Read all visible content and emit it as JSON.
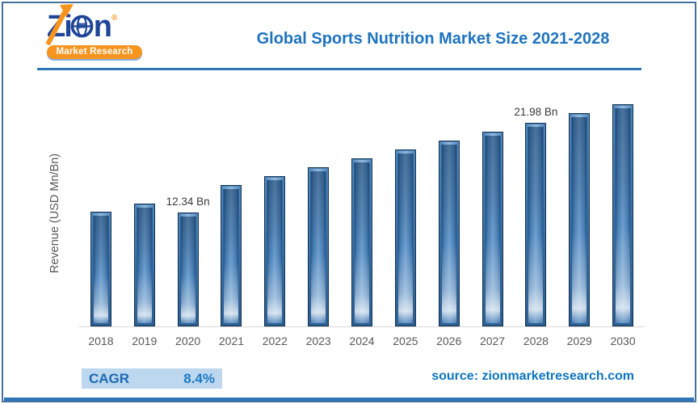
{
  "header": {
    "logo": {
      "brand": "Zion",
      "brand_part1": "Zi",
      "brand_part2": "n",
      "registered": "®",
      "subtitle": "Market Research"
    },
    "title": "Global Sports Nutrition Market Size 2021-2028"
  },
  "chart_data": {
    "type": "bar",
    "title": "Global Sports Nutrition Market Size 2021-2028",
    "categories": [
      "2018",
      "2019",
      "2020",
      "2021",
      "2022",
      "2023",
      "2024",
      "2025",
      "2026",
      "2027",
      "2028",
      "2029",
      "2030"
    ],
    "values": [
      12.35,
      13.3,
      12.34,
      15.3,
      16.25,
      17.2,
      18.15,
      19.1,
      20.05,
      21.0,
      21.98,
      23.0,
      24.0
    ],
    "unit": "USD Bn",
    "xlabel": "",
    "ylabel": "Revenue (USD Mn/Bn)",
    "ylim": [
      0,
      25
    ],
    "grid": false,
    "legend": "none",
    "y_axis_ticks_visible": false,
    "annotations": [
      {
        "category": "2020",
        "text": "12.34 Bn"
      },
      {
        "category": "2028",
        "text": "21.98 Bn"
      }
    ],
    "bar_color": "#3D76AC"
  },
  "footer": {
    "cagr_label": "CAGR",
    "cagr_value": "8.4%",
    "source": "source: zionmarketresearch.com"
  },
  "colors": {
    "title_blue": "#1E73BE",
    "rule_blue": "#2E75B6",
    "logo_navy": "#1E4598",
    "logo_orange": "#F7941E",
    "cagr_badge_bg": "#BDD7EE",
    "axis_text_gray": "#595959",
    "annotation_gray": "#3A3A3A",
    "frame_border": "#44719F"
  }
}
